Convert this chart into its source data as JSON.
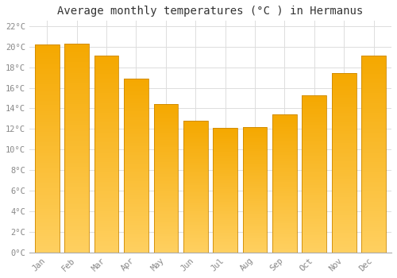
{
  "title": "Average monthly temperatures (°C ) in Hermanus",
  "months": [
    "Jan",
    "Feb",
    "Mar",
    "Apr",
    "May",
    "Jun",
    "Jul",
    "Aug",
    "Sep",
    "Oct",
    "Nov",
    "Dec"
  ],
  "values": [
    20.2,
    20.3,
    19.1,
    16.9,
    14.4,
    12.8,
    12.1,
    12.2,
    13.4,
    15.3,
    17.4,
    19.1
  ],
  "bar_color_top": "#F5A800",
  "bar_color_bottom": "#FFD060",
  "bar_edge_color": "#CC8800",
  "background_color": "#FFFFFF",
  "grid_color": "#DDDDDD",
  "ytick_labels": [
    "0°C",
    "2°C",
    "4°C",
    "6°C",
    "8°C",
    "10°C",
    "12°C",
    "14°C",
    "16°C",
    "18°C",
    "20°C",
    "22°C"
  ],
  "ytick_values": [
    0,
    2,
    4,
    6,
    8,
    10,
    12,
    14,
    16,
    18,
    20,
    22
  ],
  "ylim": [
    0,
    22.5
  ],
  "title_fontsize": 10,
  "tick_fontsize": 7.5,
  "tick_color": "#888888",
  "title_color": "#333333",
  "bar_width": 0.82
}
